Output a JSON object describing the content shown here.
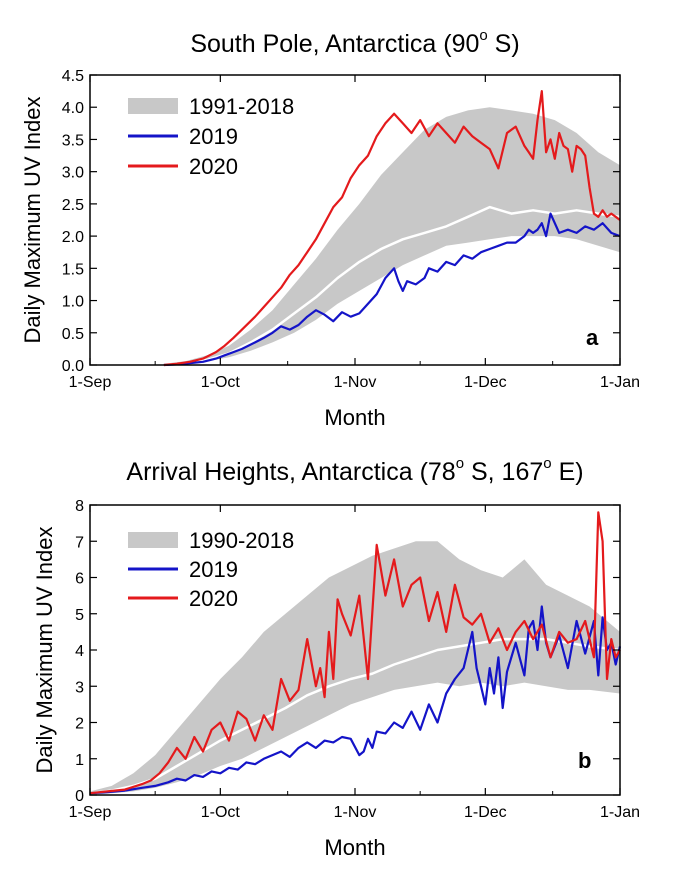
{
  "chart_data": [
    {
      "type": "line",
      "title_main": "South Pole, Antarctica (90",
      "title_tail": " S)",
      "xlabel": "Month",
      "ylabel": "Daily Maximum UV Index",
      "panel_label": "a",
      "xticks": [
        "1-Sep",
        "1-Oct",
        "1-Nov",
        "1-Dec",
        "1-Jan"
      ],
      "xlim_days": [
        0,
        122
      ],
      "ylim": [
        0,
        4.5
      ],
      "yticks": [
        "0.0",
        "0.5",
        "1.0",
        "1.5",
        "2.0",
        "2.5",
        "3.0",
        "3.5",
        "4.0",
        "4.5"
      ],
      "legend_position": "top-left",
      "colors": {
        "band": "#c8c8c8",
        "mean": "#ffffff",
        "2019": "#1414c8",
        "2020": "#e41a1c"
      },
      "series": [
        {
          "name": "1991-2018",
          "kind": "band",
          "x": [
            17,
            22,
            27,
            32,
            37,
            42,
            47,
            52,
            57,
            62,
            67,
            72,
            77,
            82,
            87,
            92,
            97,
            102,
            107,
            112,
            117,
            122
          ],
          "lower": [
            0.0,
            0.02,
            0.06,
            0.12,
            0.22,
            0.35,
            0.5,
            0.7,
            0.95,
            1.15,
            1.35,
            1.55,
            1.7,
            1.85,
            1.9,
            1.95,
            2.0,
            2.0,
            2.0,
            1.95,
            1.85,
            1.75
          ],
          "upper": [
            0.02,
            0.06,
            0.15,
            0.3,
            0.55,
            0.85,
            1.25,
            1.65,
            2.1,
            2.5,
            2.95,
            3.3,
            3.65,
            3.85,
            3.95,
            4.0,
            3.95,
            3.9,
            3.8,
            3.6,
            3.3,
            3.1
          ]
        },
        {
          "name": "1991-2018 mean",
          "kind": "mean",
          "x": [
            17,
            22,
            27,
            32,
            37,
            42,
            47,
            52,
            57,
            62,
            67,
            72,
            77,
            82,
            87,
            92,
            97,
            102,
            107,
            112,
            117,
            122
          ],
          "values": [
            0.0,
            0.03,
            0.08,
            0.18,
            0.35,
            0.55,
            0.8,
            1.05,
            1.35,
            1.6,
            1.8,
            1.95,
            2.05,
            2.15,
            2.3,
            2.45,
            2.35,
            2.4,
            2.35,
            2.4,
            2.35,
            2.3
          ]
        },
        {
          "name": "2019",
          "kind": "line",
          "x": [
            17,
            20,
            23,
            26,
            29,
            31,
            33,
            35,
            38,
            40,
            42,
            44,
            46,
            48,
            50,
            52,
            54,
            56,
            58,
            60,
            62,
            64,
            66,
            68,
            70,
            71,
            72,
            73,
            75,
            77,
            78,
            80,
            82,
            84,
            86,
            88,
            90,
            92,
            94,
            96,
            98,
            100,
            101,
            102,
            103,
            104,
            105,
            106,
            108,
            110,
            112,
            114,
            116,
            118,
            120,
            122
          ],
          "values": [
            0.0,
            0.01,
            0.03,
            0.05,
            0.1,
            0.15,
            0.2,
            0.25,
            0.35,
            0.42,
            0.5,
            0.6,
            0.55,
            0.62,
            0.75,
            0.85,
            0.78,
            0.68,
            0.82,
            0.75,
            0.8,
            0.95,
            1.1,
            1.35,
            1.5,
            1.3,
            1.15,
            1.3,
            1.25,
            1.35,
            1.5,
            1.45,
            1.6,
            1.55,
            1.7,
            1.65,
            1.75,
            1.8,
            1.85,
            1.9,
            1.9,
            2.0,
            2.1,
            2.05,
            2.1,
            2.2,
            2.0,
            2.35,
            2.05,
            2.1,
            2.05,
            2.15,
            2.1,
            2.2,
            2.05,
            2.0
          ]
        },
        {
          "name": "2020",
          "kind": "line",
          "x": [
            17,
            20,
            23,
            26,
            29,
            31,
            33,
            35,
            38,
            40,
            42,
            44,
            46,
            48,
            50,
            52,
            54,
            56,
            58,
            60,
            62,
            64,
            66,
            68,
            70,
            72,
            74,
            76,
            78,
            80,
            82,
            84,
            86,
            88,
            90,
            92,
            94,
            96,
            98,
            100,
            101,
            102,
            103,
            104,
            105,
            106,
            107,
            108,
            109,
            110,
            111,
            112,
            113,
            114,
            115,
            116,
            117,
            118,
            119,
            120,
            121,
            122
          ],
          "values": [
            0.0,
            0.02,
            0.05,
            0.1,
            0.2,
            0.3,
            0.42,
            0.55,
            0.75,
            0.9,
            1.05,
            1.2,
            1.4,
            1.55,
            1.75,
            1.95,
            2.2,
            2.45,
            2.6,
            2.9,
            3.1,
            3.25,
            3.55,
            3.75,
            3.9,
            3.75,
            3.6,
            3.8,
            3.55,
            3.75,
            3.6,
            3.45,
            3.7,
            3.55,
            3.45,
            3.35,
            3.05,
            3.6,
            3.7,
            3.4,
            3.3,
            3.2,
            3.8,
            4.25,
            3.3,
            3.5,
            3.2,
            3.6,
            3.4,
            3.35,
            3.0,
            3.4,
            3.35,
            3.25,
            2.75,
            2.35,
            2.3,
            2.4,
            2.3,
            2.35,
            2.3,
            2.25
          ]
        }
      ]
    },
    {
      "type": "line",
      "title_main": "Arrival Heights, Antarctica (78",
      "title_mid": " S, 167",
      "title_tail": " E)",
      "xlabel": "Month",
      "ylabel": "Daily Maximum UV Index",
      "panel_label": "b",
      "xticks": [
        "1-Sep",
        "1-Oct",
        "1-Nov",
        "1-Dec",
        "1-Jan"
      ],
      "xlim_days": [
        0,
        122
      ],
      "ylim": [
        0,
        8
      ],
      "yticks": [
        "0",
        "1",
        "2",
        "3",
        "4",
        "5",
        "6",
        "7",
        "8"
      ],
      "legend_position": "top-left",
      "colors": {
        "band": "#c8c8c8",
        "mean": "#ffffff",
        "2019": "#1414c8",
        "2020": "#e41a1c"
      },
      "series": [
        {
          "name": "1990-2018",
          "kind": "band",
          "x": [
            0,
            5,
            10,
            15,
            20,
            25,
            30,
            35,
            40,
            45,
            50,
            55,
            60,
            65,
            70,
            75,
            80,
            85,
            90,
            95,
            100,
            105,
            110,
            115,
            122
          ],
          "lower": [
            0.0,
            0.05,
            0.1,
            0.2,
            0.35,
            0.55,
            0.8,
            1.0,
            1.3,
            1.6,
            1.9,
            2.2,
            2.5,
            2.7,
            2.9,
            3.0,
            3.1,
            3.0,
            3.1,
            3.0,
            3.1,
            3.0,
            2.9,
            2.9,
            2.8
          ],
          "upper": [
            0.1,
            0.25,
            0.6,
            1.1,
            1.8,
            2.5,
            3.2,
            3.8,
            4.5,
            5.0,
            5.5,
            6.0,
            6.3,
            6.6,
            6.8,
            7.0,
            7.0,
            6.5,
            6.2,
            6.0,
            6.5,
            5.8,
            5.5,
            5.2,
            4.5
          ]
        },
        {
          "name": "1990-2018 mean",
          "kind": "mean",
          "x": [
            0,
            5,
            10,
            15,
            20,
            25,
            30,
            35,
            40,
            45,
            50,
            55,
            60,
            65,
            70,
            75,
            80,
            85,
            90,
            95,
            100,
            105,
            110,
            115,
            122
          ],
          "values": [
            0.05,
            0.12,
            0.25,
            0.45,
            0.8,
            1.15,
            1.5,
            1.8,
            2.1,
            2.4,
            2.75,
            3.0,
            3.2,
            3.35,
            3.6,
            3.8,
            4.0,
            4.1,
            4.2,
            4.3,
            4.3,
            4.3,
            4.2,
            4.1,
            4.0
          ]
        },
        {
          "name": "2019",
          "kind": "line",
          "x": [
            0,
            4,
            8,
            12,
            15,
            18,
            20,
            22,
            24,
            26,
            28,
            30,
            32,
            34,
            36,
            38,
            40,
            42,
            44,
            46,
            48,
            50,
            52,
            54,
            56,
            58,
            60,
            62,
            63,
            64,
            65,
            66,
            68,
            70,
            72,
            74,
            76,
            78,
            80,
            82,
            84,
            86,
            88,
            89,
            90,
            91,
            92,
            93,
            94,
            95,
            96,
            98,
            100,
            101,
            102,
            103,
            104,
            105,
            106,
            108,
            110,
            112,
            114,
            116,
            117,
            118,
            119,
            120,
            121,
            122
          ],
          "values": [
            0.05,
            0.08,
            0.12,
            0.2,
            0.25,
            0.35,
            0.45,
            0.4,
            0.55,
            0.5,
            0.65,
            0.6,
            0.75,
            0.7,
            0.9,
            0.85,
            1.0,
            1.1,
            1.2,
            1.05,
            1.3,
            1.45,
            1.3,
            1.5,
            1.45,
            1.6,
            1.55,
            1.1,
            1.2,
            1.55,
            1.3,
            1.75,
            1.7,
            2.0,
            1.85,
            2.3,
            1.8,
            2.5,
            2.0,
            2.8,
            3.2,
            3.5,
            4.5,
            3.5,
            3.0,
            2.5,
            3.5,
            2.8,
            3.8,
            2.4,
            3.4,
            4.2,
            3.3,
            4.6,
            4.8,
            4.0,
            5.2,
            4.2,
            3.8,
            4.4,
            3.5,
            4.8,
            3.9,
            4.8,
            3.3,
            4.9,
            4.0,
            4.2,
            3.6,
            4.1
          ]
        },
        {
          "name": "2020",
          "kind": "line",
          "x": [
            0,
            4,
            8,
            12,
            14,
            16,
            18,
            20,
            22,
            24,
            26,
            28,
            30,
            32,
            34,
            36,
            38,
            40,
            42,
            44,
            46,
            48,
            50,
            52,
            53,
            54,
            55,
            56,
            57,
            58,
            60,
            62,
            64,
            66,
            68,
            70,
            72,
            74,
            76,
            78,
            80,
            82,
            84,
            86,
            88,
            90,
            92,
            94,
            96,
            98,
            100,
            102,
            104,
            106,
            108,
            110,
            112,
            114,
            116,
            117,
            118,
            119,
            120,
            121,
            122
          ],
          "values": [
            0.05,
            0.1,
            0.15,
            0.3,
            0.4,
            0.6,
            0.9,
            1.3,
            1.0,
            1.6,
            1.2,
            1.8,
            2.0,
            1.5,
            2.3,
            2.1,
            1.5,
            2.2,
            1.8,
            3.2,
            2.6,
            2.9,
            4.3,
            3.0,
            3.5,
            2.7,
            4.5,
            3.2,
            5.4,
            5.0,
            4.4,
            5.5,
            3.2,
            6.9,
            5.5,
            6.5,
            5.2,
            5.8,
            6.0,
            4.8,
            5.6,
            4.5,
            5.8,
            4.9,
            4.7,
            5.0,
            4.2,
            4.6,
            4.0,
            4.5,
            4.8,
            4.3,
            4.7,
            3.8,
            4.5,
            4.2,
            4.3,
            4.8,
            3.8,
            7.8,
            7.0,
            3.2,
            4.3,
            3.8,
            4.0
          ]
        }
      ]
    }
  ]
}
